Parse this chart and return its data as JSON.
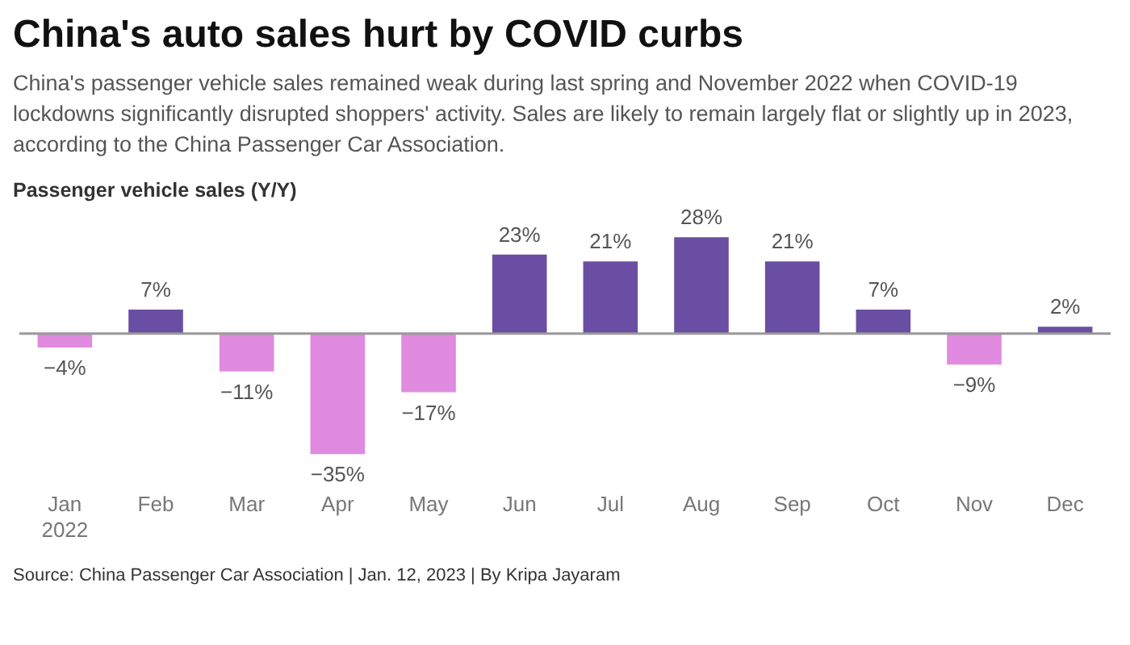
{
  "chart_data": {
    "type": "bar",
    "title": "China's auto sales hurt by COVID curbs",
    "subtitle": "China's passenger vehicle sales remained weak during last spring and November 2022 when COVID-19 lockdowns significantly disrupted shoppers' activity. Sales are likely to remain largely flat or slightly up in 2023, according to the China Passenger Car Association.",
    "ylabel": "Passenger vehicle sales (Y/Y)",
    "categories": [
      "Jan\n2022",
      "Feb",
      "Mar",
      "Apr",
      "May",
      "Jun",
      "Jul",
      "Aug",
      "Sep",
      "Oct",
      "Nov",
      "Dec"
    ],
    "values": [
      -4,
      7,
      -11,
      -35,
      -17,
      23,
      21,
      28,
      21,
      7,
      -9,
      2
    ],
    "value_labels": [
      "−4%",
      "7%",
      "−11%",
      "−35%",
      "−17%",
      "23%",
      "21%",
      "28%",
      "21%",
      "7%",
      "−9%",
      "2%"
    ],
    "colors": [
      "#e08ae0",
      "#6a4ea3",
      "#e08ae0",
      "#e08ae0",
      "#e08ae0",
      "#6a4ea3",
      "#6a4ea3",
      "#6a4ea3",
      "#6a4ea3",
      "#6a4ea3",
      "#e08ae0",
      "#6a4ea3"
    ],
    "grid": false,
    "legend": false,
    "annotations": [
      "Source: China Passenger Car Association | Jan. 12, 2023 | By Kripa Jayaram"
    ]
  }
}
